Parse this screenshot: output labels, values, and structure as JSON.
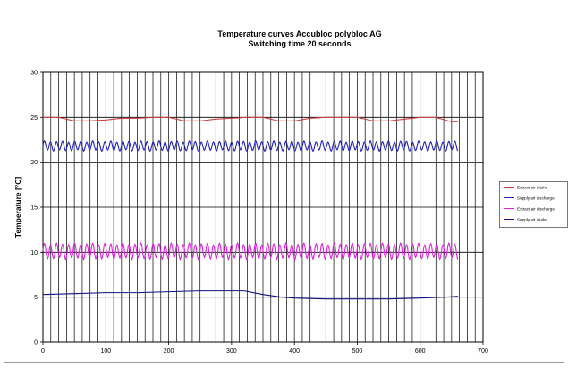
{
  "chart_data": {
    "type": "line",
    "title": [
      "Temperature curves Accubloc polybloc AG",
      "Switching time 20 seconds"
    ],
    "xlabel": "",
    "ylabel": "Temperature [°C]",
    "xlim": [
      0,
      700
    ],
    "ylim": [
      0,
      30
    ],
    "xticks": [
      0,
      100,
      200,
      300,
      400,
      500,
      600,
      700
    ],
    "yticks": [
      0,
      5,
      10,
      15,
      20,
      25,
      30
    ],
    "grid": true,
    "legend_position": "right",
    "series": [
      {
        "name": "Extract air intake",
        "color": "#d04040",
        "x": [
          0,
          25,
          50,
          75,
          100,
          125,
          150,
          175,
          200,
          225,
          250,
          275,
          300,
          325,
          350,
          375,
          400,
          425,
          450,
          475,
          500,
          525,
          550,
          575,
          600,
          625,
          650,
          660
        ],
        "y": [
          25.0,
          25.0,
          24.6,
          24.6,
          24.7,
          24.9,
          24.9,
          25.0,
          25.0,
          24.6,
          24.6,
          24.8,
          24.9,
          25.0,
          25.0,
          24.6,
          24.6,
          24.9,
          25.0,
          25.0,
          25.0,
          24.6,
          24.6,
          24.8,
          25.0,
          25.0,
          24.5,
          24.5
        ]
      },
      {
        "name": "Supply air discharge",
        "color": "#2020c0",
        "x_start": 0,
        "x_end": 660,
        "mean": 21.8,
        "amplitude": 0.5,
        "oscillation_period": 9.6
      },
      {
        "name": "Extract air discharge",
        "color": "#e020e0",
        "x_start": 0,
        "x_end": 660,
        "mean": 10.1,
        "amplitude": 0.8,
        "oscillation_period": 9.6
      },
      {
        "name": "Supply air intake",
        "color": "#101080",
        "x": [
          0,
          50,
          100,
          150,
          200,
          250,
          300,
          320,
          350,
          380,
          400,
          450,
          500,
          550,
          600,
          640,
          660
        ],
        "y": [
          5.3,
          5.4,
          5.5,
          5.5,
          5.6,
          5.7,
          5.7,
          5.7,
          5.3,
          5.0,
          4.9,
          4.8,
          4.8,
          4.8,
          4.9,
          5.0,
          5.1
        ]
      }
    ]
  },
  "legend": {
    "items": [
      {
        "label": "Extract air intake",
        "color": "#d04040"
      },
      {
        "label": "Supply air discharge",
        "color": "#2020c0"
      },
      {
        "label": "Extract air discharge",
        "color": "#e020e0"
      },
      {
        "label": "Supply air intake",
        "color": "#101080"
      }
    ]
  }
}
